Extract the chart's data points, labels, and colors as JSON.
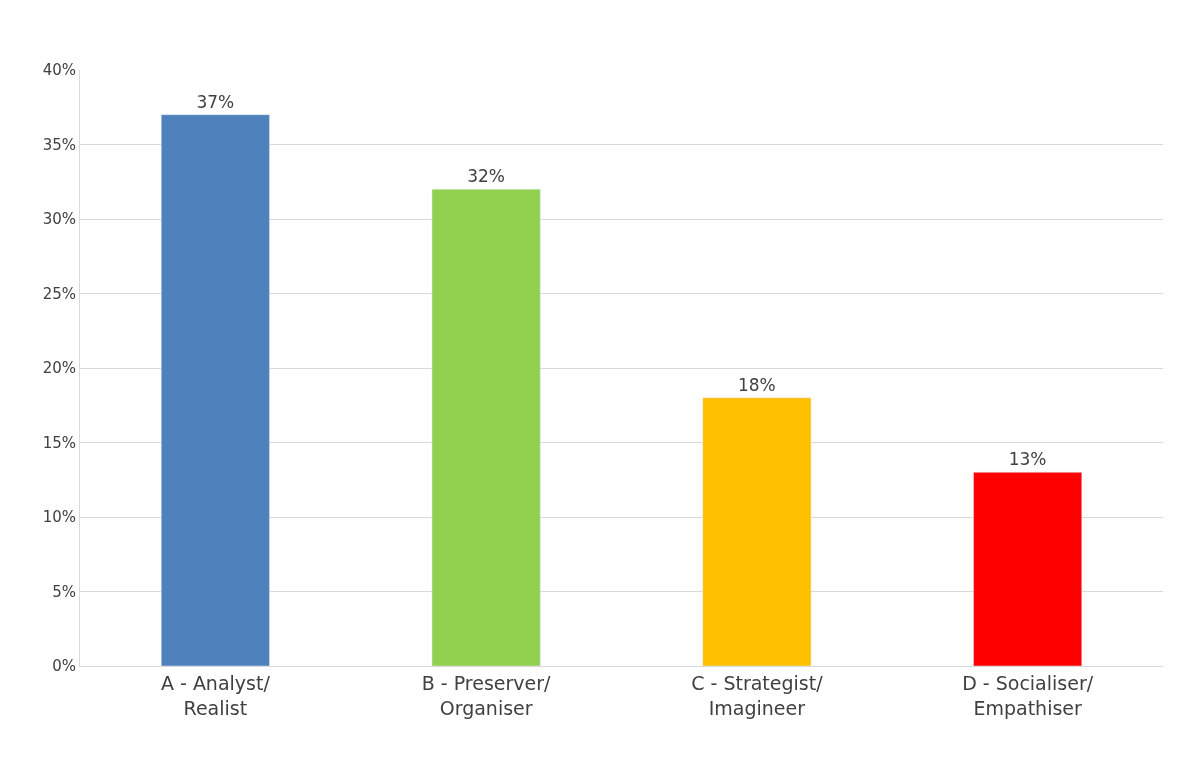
{
  "chart_data": {
    "type": "bar",
    "categories": [
      "A - Analyst/\nRealist",
      "B - Preserver/\nOrganiser",
      "C - Strategist/\nImagineer",
      "D - Socialiser/\nEmpathiser"
    ],
    "values": [
      37,
      32,
      18,
      13
    ],
    "colors": [
      "#4f81bd",
      "#92d050",
      "#ffc000",
      "#ff0000"
    ],
    "value_labels": [
      "37%",
      "32%",
      "18%",
      "13%"
    ],
    "ylim": [
      0,
      40
    ],
    "yticks": [
      {
        "value": 0,
        "label": "0%"
      },
      {
        "value": 5,
        "label": "5%"
      },
      {
        "value": 10,
        "label": "10%"
      },
      {
        "value": 15,
        "label": "15%"
      },
      {
        "value": 20,
        "label": "20%"
      },
      {
        "value": 25,
        "label": "25%"
      },
      {
        "value": 30,
        "label": "30%"
      },
      {
        "value": 35,
        "label": "35%"
      },
      {
        "value": 40,
        "label": "40%"
      }
    ],
    "grid": "y"
  }
}
